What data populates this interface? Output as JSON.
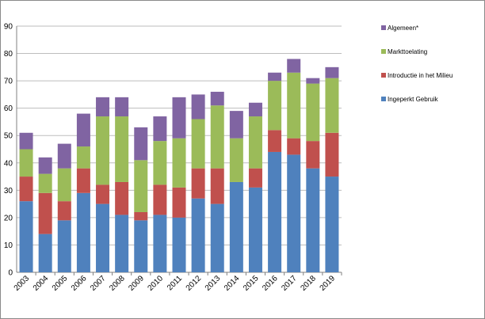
{
  "chart_data": {
    "type": "bar",
    "stacked": true,
    "title": "",
    "xlabel": "",
    "ylabel": "",
    "ylim": [
      0,
      90
    ],
    "yticks": [
      0,
      10,
      20,
      30,
      40,
      50,
      60,
      70,
      80,
      90
    ],
    "grid": true,
    "legend_position": "right",
    "categories": [
      "2003",
      "2004",
      "2005",
      "2006",
      "2007",
      "2008",
      "2009",
      "2010",
      "2011",
      "2012",
      "2013",
      "2014",
      "2015",
      "2016",
      "2017",
      "2018",
      "2019"
    ],
    "series": [
      {
        "name": "Ingeperkt Gebruik",
        "color": "#4f81bd",
        "values": [
          26,
          14,
          19,
          29,
          25,
          21,
          19,
          21,
          20,
          27,
          25,
          33,
          31,
          44,
          43,
          38,
          35
        ]
      },
      {
        "name": "Introductie in het Milieu",
        "color": "#c0504d",
        "values": [
          9,
          15,
          7,
          9,
          7,
          12,
          3,
          11,
          11,
          11,
          13,
          0,
          7,
          8,
          6,
          10,
          16
        ]
      },
      {
        "name": "Markttoelating",
        "color": "#9bbb59",
        "values": [
          10,
          7,
          12,
          8,
          25,
          24,
          19,
          16,
          18,
          18,
          23,
          16,
          19,
          18,
          24,
          21,
          20
        ]
      },
      {
        "name": "Algemeen*",
        "color": "#8064a2",
        "values": [
          6,
          6,
          9,
          12,
          7,
          7,
          12,
          9,
          15,
          9,
          5,
          10,
          5,
          3,
          5,
          2,
          4
        ]
      }
    ]
  }
}
